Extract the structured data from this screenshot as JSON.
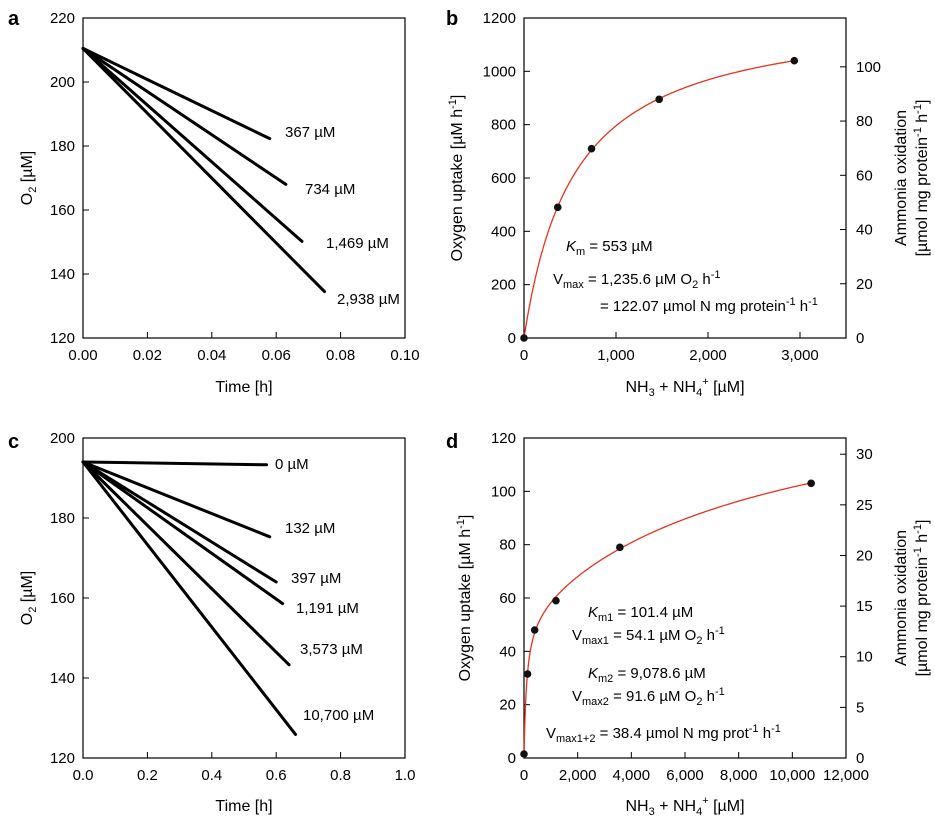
{
  "chart_data": [
    {
      "panel": "a",
      "type": "line",
      "xlabel": "Time [h]",
      "ylabel": "O",
      "ylabel_sub": "2",
      "ylabel_tail": " [µM]",
      "xlim": [
        0,
        0.1
      ],
      "ylim": [
        120,
        220
      ],
      "xticks": [
        0,
        0.02,
        0.04,
        0.06,
        0.08,
        0.1
      ],
      "xtick_labels": [
        "0.00",
        "0.02",
        "0.04",
        "0.06",
        "0.08",
        "0.10"
      ],
      "yticks": [
        120,
        140,
        160,
        180,
        200,
        220
      ],
      "ytick_labels": [
        "120",
        "140",
        "160",
        "180",
        "200",
        "220"
      ],
      "series": [
        {
          "name": "367 µM",
          "x": [
            0,
            0.058
          ],
          "y": [
            210.5,
            182.3
          ]
        },
        {
          "name": "734 µM",
          "x": [
            0,
            0.063
          ],
          "y": [
            210.5,
            168
          ]
        },
        {
          "name": "1,469 µM",
          "x": [
            0,
            0.068
          ],
          "y": [
            210.5,
            150.2
          ]
        },
        {
          "name": "2,938 µM",
          "x": [
            0,
            0.075
          ],
          "y": [
            210.5,
            134.5
          ]
        }
      ]
    },
    {
      "panel": "b",
      "type": "scatter",
      "xlabel": "NH",
      "xlabel_sub1": "3",
      "xlabel_mid": " + NH",
      "xlabel_sub2": "4",
      "xlabel_sup": "+",
      "xlabel_tail": " [µM]",
      "ylabel": "Oxygen uptake [µM h",
      "ylabel_sup": "-1",
      "ylabel_tail": "]",
      "y2label_line1": "Ammonia oxidation",
      "y2label_line2_a": "[µmol mg protein",
      "y2label_line2_b": " h",
      "y2label_sup": "-1",
      "y2label_end": "]",
      "xlim": [
        0,
        3500
      ],
      "ylim": [
        0,
        1200
      ],
      "y2lim": [
        0,
        118
      ],
      "xticks": [
        0,
        1000,
        2000,
        3000
      ],
      "xtick_labels": [
        "0",
        "1,000",
        "2,000",
        "3,000"
      ],
      "yticks": [
        0,
        200,
        400,
        600,
        800,
        1000,
        1200
      ],
      "ytick_labels": [
        "0",
        "200",
        "400",
        "600",
        "800",
        "1000",
        "1200"
      ],
      "y2ticks": [
        0,
        20,
        40,
        60,
        80,
        100
      ],
      "y2tick_labels": [
        "0",
        "20",
        "40",
        "60",
        "80",
        "100"
      ],
      "points": {
        "x": [
          0,
          367,
          734,
          1469,
          2938
        ],
        "y": [
          0,
          490,
          710,
          895,
          1040
        ]
      },
      "fit": {
        "model": "michaelis-menten",
        "Km": 553,
        "Vmax": 1235.6,
        "x_end": 2950,
        "color": "#e8321e"
      },
      "annotations": {
        "km_sym": "K",
        "km_sub": "m",
        "km_val": " = 553 µM",
        "v_sym": "V",
        "v_sub": "max",
        "v_val": " = 1,235.6 µM O",
        "v_o_sub": "2",
        "v_unit": " h",
        "v_sup": "-1",
        "v2_prefix": "= 122.07 µmol N mg protein",
        "v2_sup": "-1",
        "v2_mid": " h",
        "v2_sup2": "-1"
      }
    },
    {
      "panel": "c",
      "type": "line",
      "xlabel": "Time [h]",
      "ylabel": "O",
      "ylabel_sub": "2",
      "ylabel_tail": " [µM]",
      "xlim": [
        0,
        1.0
      ],
      "ylim": [
        120,
        200
      ],
      "xticks": [
        0,
        0.2,
        0.4,
        0.6,
        0.8,
        1.0
      ],
      "xtick_labels": [
        "0.0",
        "0.2",
        "0.4",
        "0.6",
        "0.8",
        "1.0"
      ],
      "yticks": [
        120,
        140,
        160,
        180,
        200
      ],
      "ytick_labels": [
        "120",
        "140",
        "160",
        "180",
        "200"
      ],
      "series": [
        {
          "name": "0 µM",
          "x": [
            0,
            0.57
          ],
          "y": [
            194,
            193.3
          ]
        },
        {
          "name": "132 µM",
          "x": [
            0,
            0.58
          ],
          "y": [
            194,
            175.3
          ]
        },
        {
          "name": "397 µM",
          "x": [
            0,
            0.6
          ],
          "y": [
            194,
            164
          ]
        },
        {
          "name": "1,191 µM",
          "x": [
            0,
            0.62
          ],
          "y": [
            194,
            158.6
          ]
        },
        {
          "name": "3,573 µM",
          "x": [
            0,
            0.64
          ],
          "y": [
            194,
            143.3
          ]
        },
        {
          "name": "10,700 µM",
          "x": [
            0,
            0.66
          ],
          "y": [
            194,
            125.9
          ]
        }
      ]
    },
    {
      "panel": "d",
      "type": "scatter",
      "xlabel": "NH",
      "xlabel_sub1": "3",
      "xlabel_mid": " + NH",
      "xlabel_sub2": "4",
      "xlabel_sup": "+",
      "xlabel_tail": " [µM]",
      "ylabel": "Oxygen uptake [µM h",
      "ylabel_sup": "-1",
      "ylabel_tail": "]",
      "y2label_line1": "Ammonia oxidation",
      "y2label_line2_a": "[µmol mg protein",
      "y2label_line2_b": " h",
      "y2label_sup": "-1",
      "y2label_end": "]",
      "xlim": [
        0,
        12000
      ],
      "ylim": [
        0,
        120
      ],
      "y2lim": [
        0,
        31.6
      ],
      "xticks": [
        0,
        2000,
        4000,
        6000,
        8000,
        10000,
        12000
      ],
      "xtick_labels": [
        "0",
        "2,000",
        "4,000",
        "6,000",
        "8,000",
        "10,000",
        "12,000"
      ],
      "yticks": [
        0,
        20,
        40,
        60,
        80,
        100,
        120
      ],
      "ytick_labels": [
        "0",
        "20",
        "40",
        "60",
        "80",
        "100",
        "120"
      ],
      "y2ticks": [
        0,
        5,
        10,
        15,
        20,
        25,
        30
      ],
      "y2tick_labels": [
        "0",
        "5",
        "10",
        "15",
        "20",
        "25",
        "30"
      ],
      "points": {
        "x": [
          0,
          132,
          397,
          1191,
          3573,
          10700
        ],
        "y": [
          1.5,
          31.5,
          48,
          59,
          79,
          103
        ]
      },
      "fit": {
        "model": "two-site",
        "Km1": 101.4,
        "Vmax1": 54.1,
        "Km2": 9078.6,
        "Vmax2": 91.6,
        "x_end": 10750,
        "color": "#e8321e"
      },
      "annotations": {
        "km1_sym": "K",
        "km1_sub": "m1",
        "km1_val": " = 101.4 µM",
        "v1_sym": "V",
        "v1_sub": "max1",
        "v1_val": " = 54.1 µM O",
        "v1_o_sub": "2",
        "v1_unit": " h",
        "v1_sup": "-1",
        "km2_sym": "K",
        "km2_sub": "m2",
        "km2_val": " = 9,078.6 µM",
        "v2_sym": "V",
        "v2_sub": "max2",
        "v2_val": " = 91.6 µM O",
        "v2_o_sub": "2",
        "v2_unit": " h",
        "v2_sup": "-1",
        "v12_sym": "V",
        "v12_sub": "max1+2",
        "v12_val": " = 38.4 µmol N mg prot",
        "v12_sup": "-1",
        "v12_mid": " h",
        "v12_sup2": "-1"
      }
    }
  ]
}
